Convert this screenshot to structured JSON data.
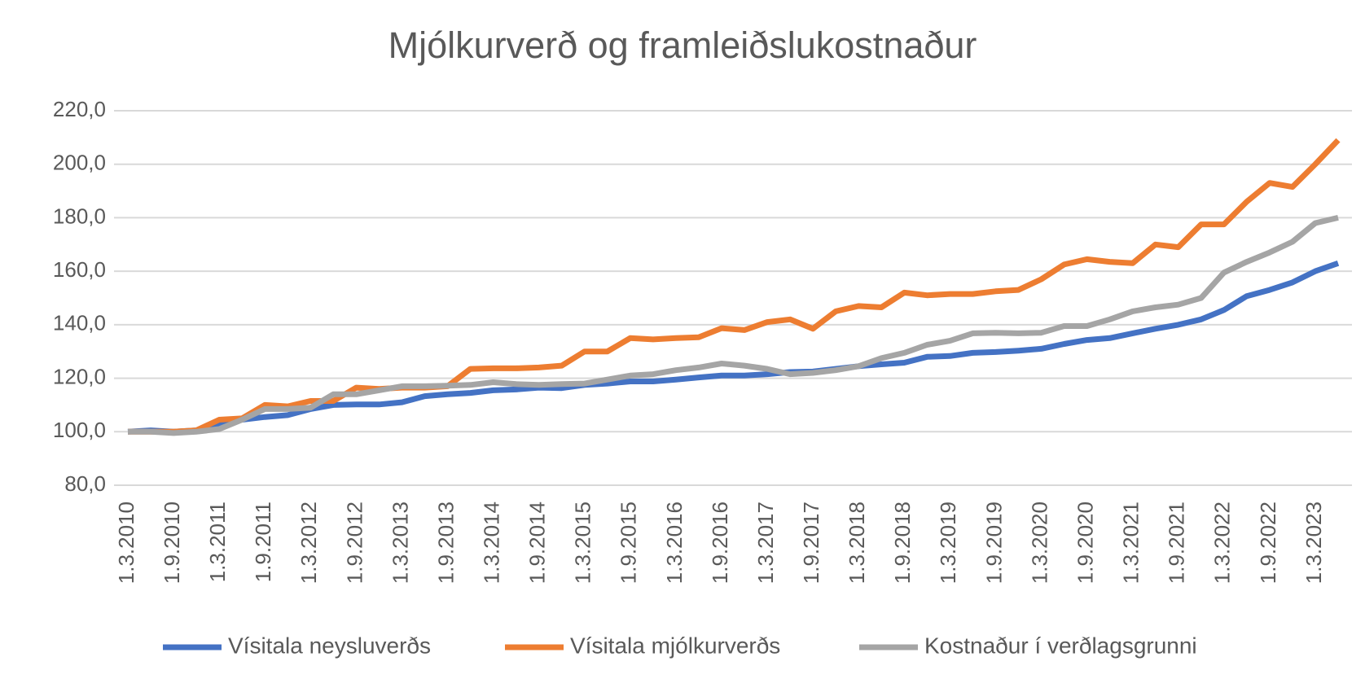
{
  "chart_data": {
    "type": "line",
    "title": "Mjólkurverð og framleiðslukostnaður",
    "categories": [
      "1.3.2010",
      null,
      "1.9.2010",
      null,
      "1.3.2011",
      null,
      "1.9.2011",
      null,
      "1.3.2012",
      null,
      "1.9.2012",
      null,
      "1.3.2013",
      null,
      "1.9.2013",
      null,
      "1.3.2014",
      null,
      "1.9.2014",
      null,
      "1.3.2015",
      null,
      "1.9.2015",
      null,
      "1.3.2016",
      null,
      "1.9.2016",
      null,
      "1.3.2017",
      null,
      "1.9.2017",
      null,
      "1.3.2018",
      null,
      "1.9.2018",
      null,
      "1.3.2019",
      null,
      "1.9.2019",
      null,
      "1.3.2020",
      null,
      "1.9.2020",
      null,
      "1.3.2021",
      null,
      "1.9.2021",
      null,
      "1.3.2022",
      null,
      "1.9.2022",
      null,
      "1.3.2023",
      null
    ],
    "series": [
      {
        "name": "Vísitala neysluverðs",
        "color": "#4472c4",
        "values": [
          100,
          100.5,
          100,
          100.5,
          102.5,
          104.5,
          105.5,
          106.2,
          108.5,
          110,
          110.2,
          110.2,
          111,
          113.3,
          114,
          114.5,
          115.5,
          115.8,
          116.5,
          116.3,
          117.5,
          118,
          118.8,
          118.8,
          119.5,
          120.3,
          121,
          121,
          121.5,
          122.3,
          122.5,
          123.5,
          124.5,
          125.2,
          125.8,
          128,
          128.3,
          129.5,
          129.8,
          130.3,
          131,
          132.8,
          134.3,
          135,
          136.8,
          138.5,
          140,
          142,
          145.5,
          150.7,
          153,
          155.8,
          160,
          163
        ]
      },
      {
        "name": "Vísitala mjólkurverðs",
        "color": "#ed7d31",
        "values": [
          100,
          100,
          100,
          100.5,
          104.5,
          105,
          110,
          109.5,
          111.5,
          111.5,
          116.5,
          116,
          116.5,
          116.5,
          117,
          123.5,
          123.7,
          123.7,
          124,
          124.7,
          130,
          130,
          135,
          134.5,
          135,
          135.3,
          138.7,
          138,
          141,
          142,
          138.5,
          145,
          147,
          146.5,
          152,
          151,
          151.5,
          151.5,
          152.5,
          153,
          157,
          162.5,
          164.5,
          163.5,
          163,
          170,
          169,
          177.5,
          177.5,
          186,
          193,
          191.5,
          200,
          209
        ]
      },
      {
        "name": "Kostnaður í verðlagsgrunni",
        "color": "#a5a5a5",
        "values": [
          100,
          100,
          99.5,
          100,
          101,
          104.5,
          108.5,
          108.5,
          109,
          114,
          114,
          115.5,
          117,
          117,
          117.2,
          117.5,
          118.5,
          117.8,
          117.5,
          117.8,
          118,
          119.5,
          121,
          121.5,
          123,
          124,
          125.5,
          124.7,
          123.5,
          121.5,
          122,
          123,
          124.5,
          127.5,
          129.5,
          132.5,
          134,
          136.8,
          137,
          136.8,
          137,
          139.5,
          139.5,
          142,
          145,
          146.5,
          147.5,
          150,
          159.5,
          163.5,
          167,
          171,
          178,
          180
        ]
      }
    ],
    "ylim": [
      80,
      220
    ],
    "yticks": [
      {
        "value": 80,
        "label": "80,0"
      },
      {
        "value": 100,
        "label": "100,0"
      },
      {
        "value": 120,
        "label": "120,0"
      },
      {
        "value": 140,
        "label": "140,0"
      },
      {
        "value": 160,
        "label": "160,0"
      },
      {
        "value": 180,
        "label": "180,0"
      },
      {
        "value": 200,
        "label": "200,0"
      },
      {
        "value": 220,
        "label": "220,0"
      }
    ],
    "grid": true,
    "legend": "bottom"
  }
}
